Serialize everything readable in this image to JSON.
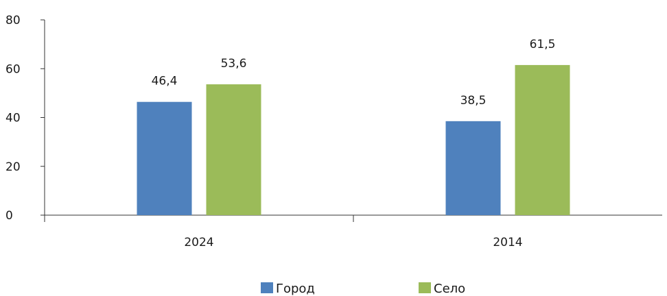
{
  "chart_data": {
    "type": "bar",
    "categories": [
      "2024",
      "2014"
    ],
    "series": [
      {
        "name": "Город",
        "values": [
          46.4,
          38.5
        ],
        "labels": [
          "46,4",
          "38,5"
        ],
        "color": "#4F81BD"
      },
      {
        "name": "Село",
        "values": [
          53.6,
          61.5
        ],
        "labels": [
          "53,6",
          "61,5"
        ],
        "color": "#9BBB59"
      }
    ],
    "ylim": [
      0,
      80
    ],
    "yticks": [
      0,
      20,
      40,
      60,
      80
    ],
    "grid": false,
    "legend": "bottom",
    "title": "",
    "xlabel": "",
    "ylabel": ""
  }
}
